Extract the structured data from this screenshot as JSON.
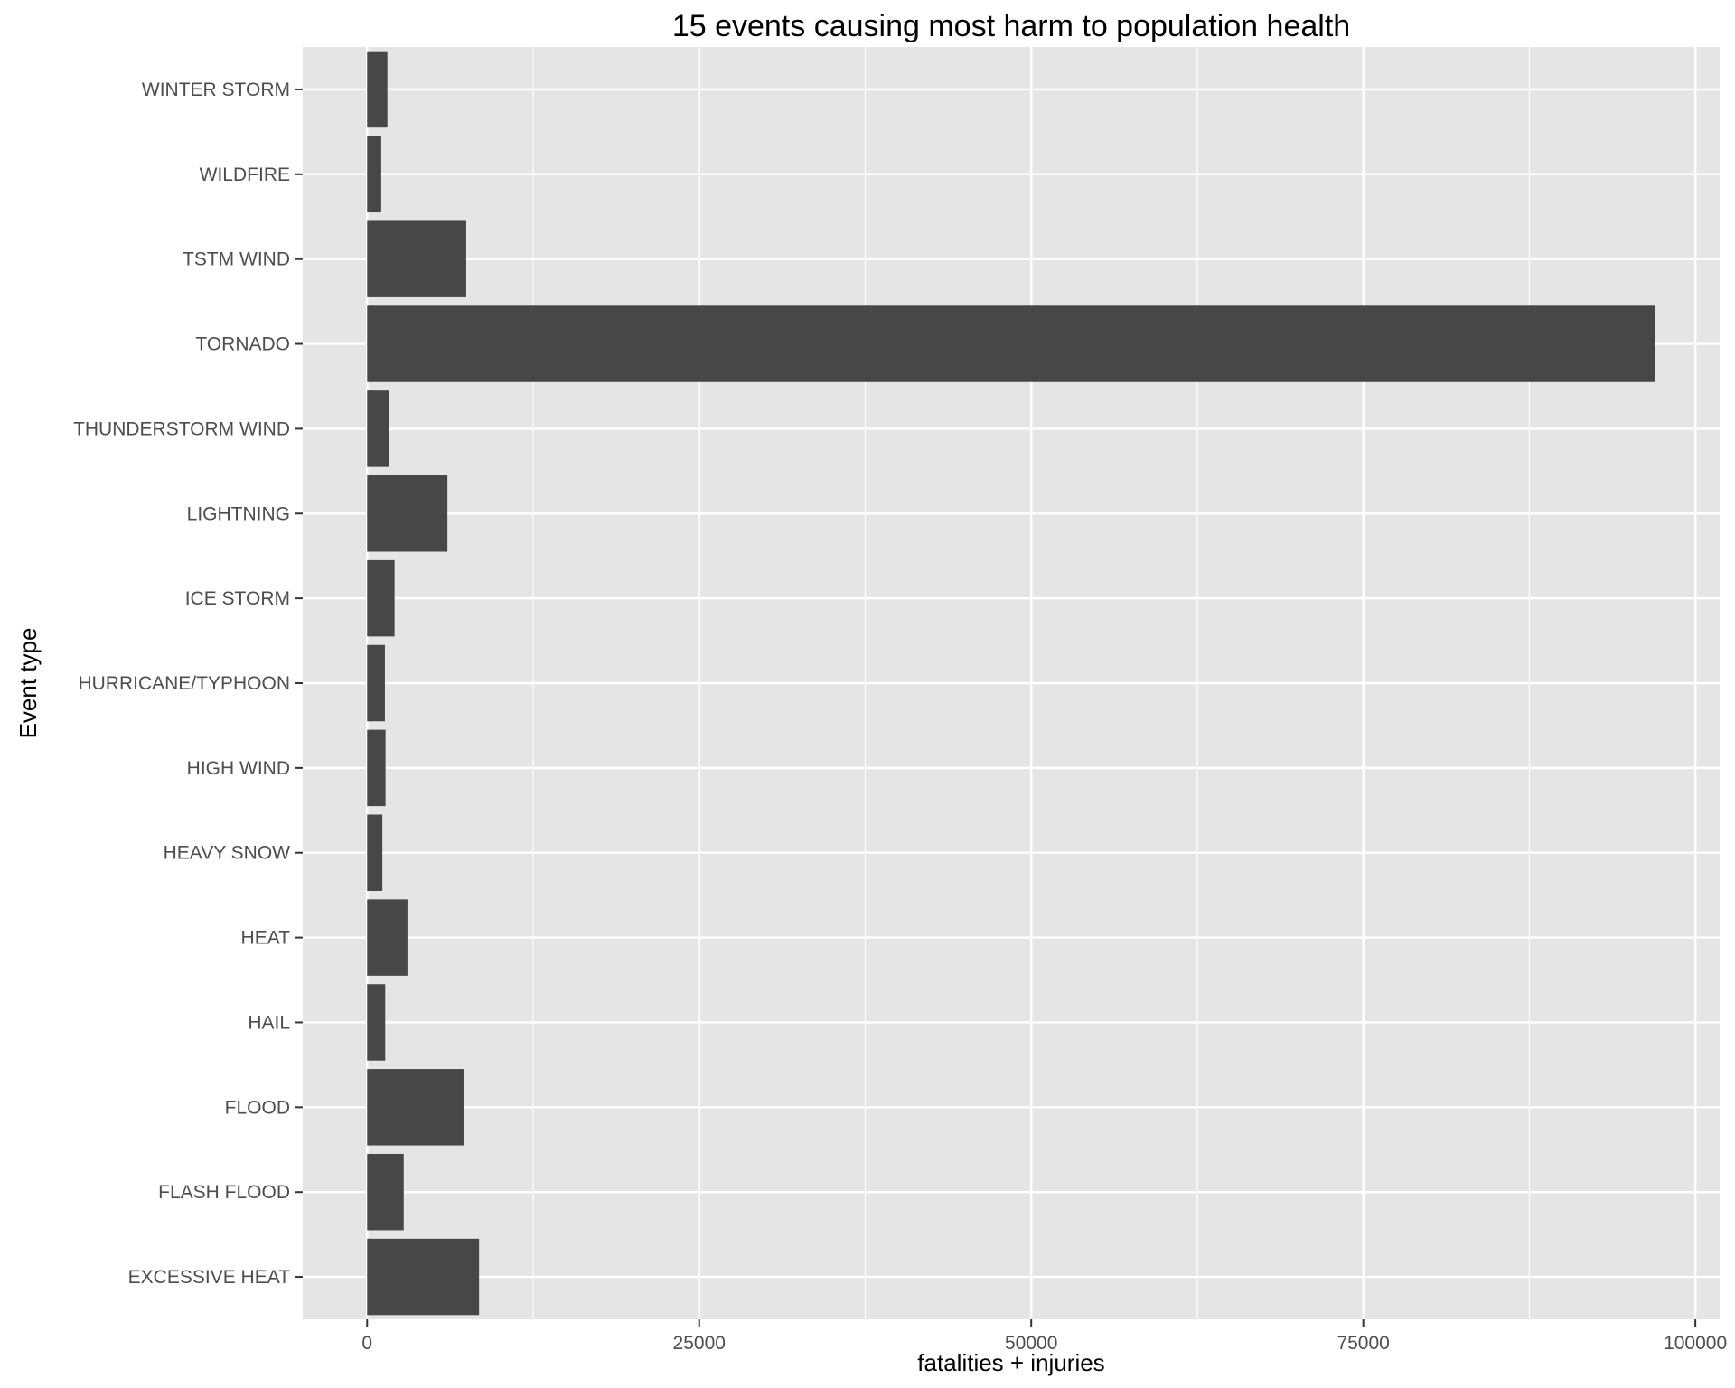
{
  "chart_data": {
    "type": "bar",
    "orientation": "horizontal",
    "title": "15 events causing most harm to population health",
    "xlabel": "fatalities + injuries",
    "ylabel": "Event type",
    "categories": [
      "EXCESSIVE HEAT",
      "FLASH FLOOD",
      "FLOOD",
      "HAIL",
      "HEAT",
      "HEAVY SNOW",
      "HIGH WIND",
      "HURRICANE/TYPHOON",
      "ICE STORM",
      "LIGHTNING",
      "THUNDERSTORM WIND",
      "TORNADO",
      "TSTM WIND",
      "WILDFIRE",
      "WINTER STORM"
    ],
    "values": [
      8428,
      2755,
      7259,
      1361,
      3037,
      1148,
      1385,
      1339,
      2064,
      6046,
      1621,
      96979,
      7461,
      1061,
      1527
    ],
    "xlim": [
      -4849,
      101828
    ],
    "xticks": [
      0,
      25000,
      50000,
      75000,
      100000
    ],
    "xtick_labels": [
      "0",
      "25000",
      "50000",
      "75000",
      "100000"
    ],
    "grid": true,
    "legend": "none",
    "colors": {
      "bar": "#474747",
      "panel": "#e5e5e5",
      "grid": "#ffffff",
      "tick_text": "#4d4d4d"
    }
  }
}
